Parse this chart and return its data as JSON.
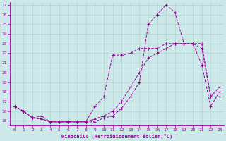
{
  "xlabel": "Windchill (Refroidissement éolien,°C)",
  "bg_color": "#cce8e8",
  "line_color": "#990099",
  "grid_color": "#aacccc",
  "ylim_min": 14.5,
  "ylim_max": 27.3,
  "xlim_min": -0.5,
  "xlim_max": 23.5,
  "yticks": [
    15,
    16,
    17,
    18,
    19,
    20,
    21,
    22,
    23,
    24,
    25,
    26,
    27
  ],
  "xticks": [
    0,
    1,
    2,
    3,
    4,
    5,
    6,
    7,
    8,
    9,
    10,
    11,
    12,
    13,
    14,
    15,
    16,
    17,
    18,
    19,
    20,
    21,
    22,
    23
  ],
  "series": [
    [
      16.5,
      16.0,
      15.3,
      15.5,
      14.9,
      14.9,
      14.9,
      14.9,
      14.9,
      14.9,
      15.3,
      15.5,
      16.3,
      17.5,
      19.0,
      25.0,
      26.0,
      27.0,
      26.2,
      23.0,
      23.0,
      20.8,
      16.5,
      18.0
    ],
    [
      16.5,
      16.0,
      15.3,
      15.2,
      14.9,
      14.9,
      14.9,
      14.9,
      14.9,
      15.2,
      15.5,
      16.0,
      17.0,
      18.5,
      20.0,
      21.5,
      22.0,
      22.5,
      23.0,
      23.0,
      23.0,
      23.0,
      17.5,
      18.5
    ],
    [
      16.5,
      16.0,
      15.3,
      15.2,
      14.9,
      14.9,
      14.9,
      14.9,
      14.9,
      16.5,
      17.5,
      21.8,
      21.8,
      22.0,
      22.5,
      22.5,
      22.5,
      23.0,
      23.0,
      23.0,
      23.0,
      22.5,
      17.5,
      17.5
    ]
  ]
}
